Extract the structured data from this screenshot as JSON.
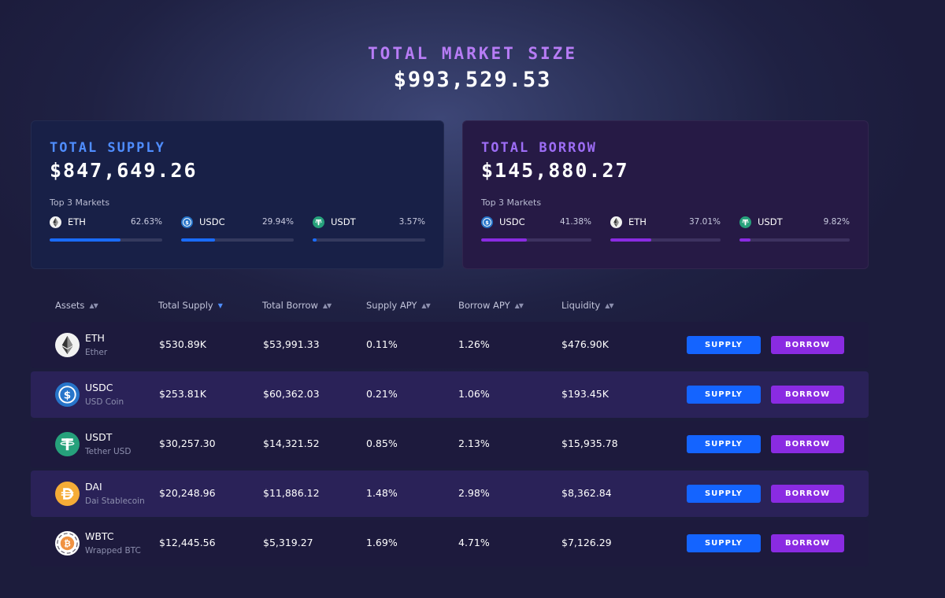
{
  "hero": {
    "label": "TOTAL MARKET SIZE",
    "value": "$993,529.53"
  },
  "supply_card": {
    "label": "TOTAL SUPPLY",
    "value": "$847,649.26",
    "top_label": "Top 3 Markets",
    "markets": [
      {
        "name": "ETH",
        "pct": "62.63%",
        "fill": 0.6263,
        "icon": "eth-icon"
      },
      {
        "name": "USDC",
        "pct": "29.94%",
        "fill": 0.2994,
        "icon": "usdc-icon"
      },
      {
        "name": "USDT",
        "pct": "3.57%",
        "fill": 0.0357,
        "icon": "usdt-icon"
      }
    ]
  },
  "borrow_card": {
    "label": "TOTAL BORROW",
    "value": "$145,880.27",
    "top_label": "Top 3 Markets",
    "markets": [
      {
        "name": "USDC",
        "pct": "41.38%",
        "fill": 0.4138,
        "icon": "usdc-icon"
      },
      {
        "name": "ETH",
        "pct": "37.01%",
        "fill": 0.3701,
        "icon": "eth-icon"
      },
      {
        "name": "USDT",
        "pct": "9.82%",
        "fill": 0.0982,
        "icon": "usdt-icon"
      }
    ]
  },
  "table": {
    "headers": [
      "Assets",
      "Total Supply",
      "Total Borrow",
      "Supply APY",
      "Borrow APY",
      "Liquidity"
    ],
    "active_sort": "Total Supply",
    "supply_label": "SUPPLY",
    "borrow_label": "BORROW",
    "rows": [
      {
        "symbol": "ETH",
        "name": "Ether",
        "total_supply": "$530.89K",
        "total_borrow": "$53,991.33",
        "supply_apy": "0.11%",
        "borrow_apy": "1.26%",
        "liquidity": "$476.90K",
        "icon": "eth-icon"
      },
      {
        "symbol": "USDC",
        "name": "USD Coin",
        "total_supply": "$253.81K",
        "total_borrow": "$60,362.03",
        "supply_apy": "0.21%",
        "borrow_apy": "1.06%",
        "liquidity": "$193.45K",
        "icon": "usdc-icon"
      },
      {
        "symbol": "USDT",
        "name": "Tether USD",
        "total_supply": "$30,257.30",
        "total_borrow": "$14,321.52",
        "supply_apy": "0.85%",
        "borrow_apy": "2.13%",
        "liquidity": "$15,935.78",
        "icon": "usdt-icon"
      },
      {
        "symbol": "DAI",
        "name": "Dai Stablecoin",
        "total_supply": "$20,248.96",
        "total_borrow": "$11,886.12",
        "supply_apy": "1.48%",
        "borrow_apy": "2.98%",
        "liquidity": "$8,362.84",
        "icon": "dai-icon"
      },
      {
        "symbol": "WBTC",
        "name": "Wrapped BTC",
        "total_supply": "$12,445.56",
        "total_borrow": "$5,319.27",
        "supply_apy": "1.69%",
        "borrow_apy": "4.71%",
        "liquidity": "$7,126.29",
        "icon": "wbtc-icon"
      }
    ]
  },
  "colors": {
    "accent_blue": "#1464ff",
    "accent_purple": "#8a2be2",
    "hero_label": "#b77cf5",
    "supply_label": "#4f8dff",
    "borrow_label": "#9d6df5",
    "eth_bg": "#f2f2f2",
    "usdc": "#2775ca",
    "usdt": "#26a17b",
    "dai": "#f5ac37",
    "wbtc": "#f09242"
  }
}
